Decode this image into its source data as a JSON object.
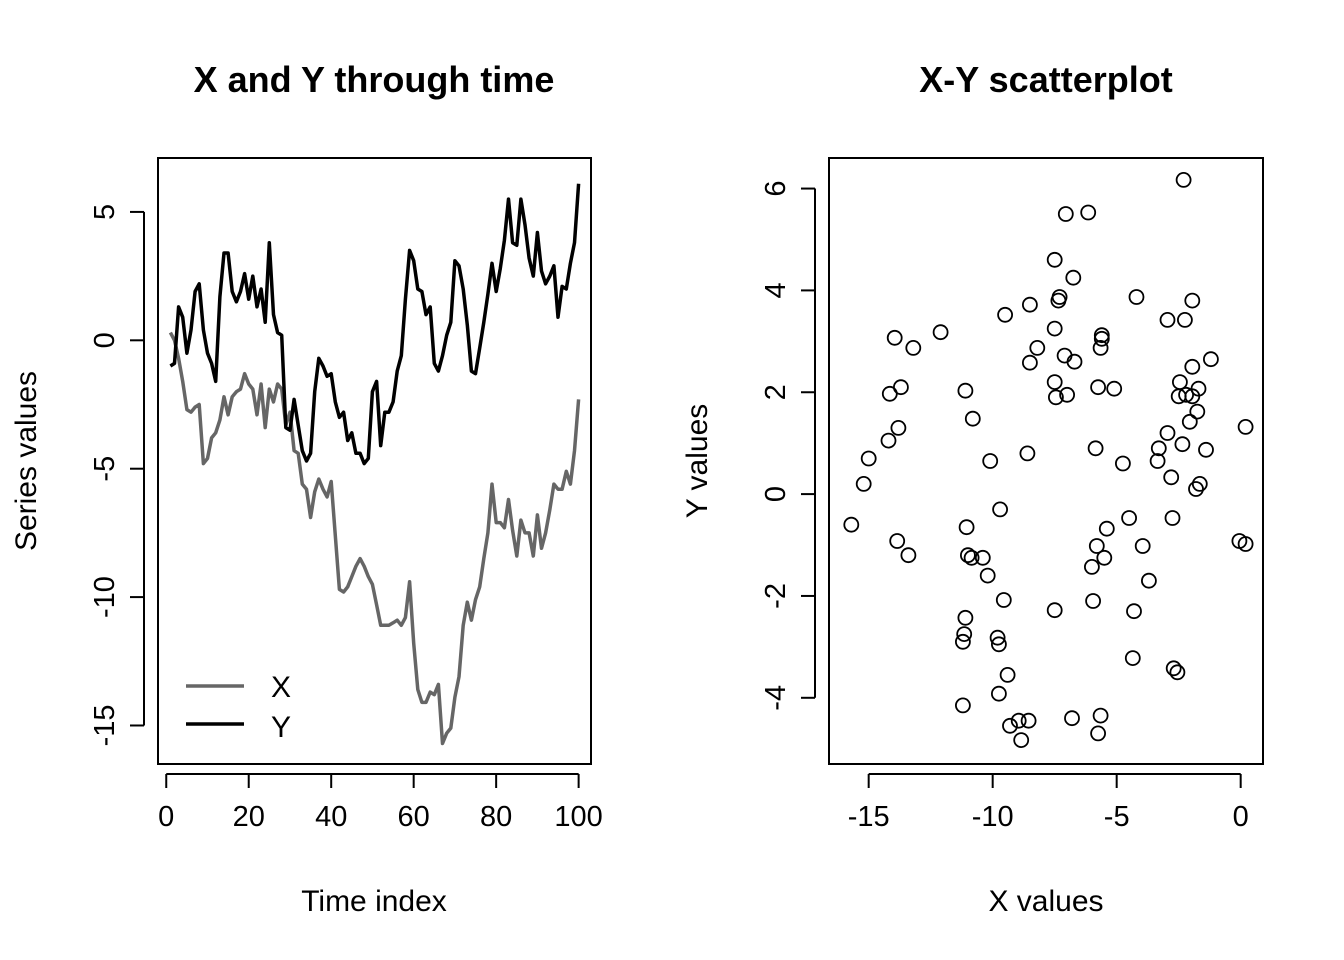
{
  "chart_data": [
    {
      "type": "line",
      "title": "X and Y through time",
      "xlabel": "Time index",
      "ylabel": "Series values",
      "xlim": [
        -2,
        103
      ],
      "ylim": [
        -16.5,
        7.1
      ],
      "xticks": [
        0,
        20,
        40,
        60,
        80,
        100
      ],
      "yticks": [
        5,
        0,
        -5,
        -10,
        -15
      ],
      "grid": false,
      "legend": "bottom-left",
      "x": [
        1,
        2,
        3,
        4,
        5,
        6,
        7,
        8,
        9,
        10,
        11,
        12,
        13,
        14,
        15,
        16,
        17,
        18,
        19,
        20,
        21,
        22,
        23,
        24,
        25,
        26,
        27,
        28,
        29,
        30,
        31,
        32,
        33,
        34,
        35,
        36,
        37,
        38,
        39,
        40,
        41,
        42,
        43,
        44,
        45,
        46,
        47,
        48,
        49,
        50,
        51,
        52,
        53,
        54,
        55,
        56,
        57,
        58,
        59,
        60,
        61,
        62,
        63,
        64,
        65,
        66,
        67,
        68,
        69,
        70,
        71,
        72,
        73,
        74,
        75,
        76,
        77,
        78,
        79,
        80,
        81,
        82,
        83,
        84,
        85,
        86,
        87,
        88,
        89,
        90,
        91,
        92,
        93,
        94,
        95,
        96,
        97,
        98,
        99,
        100
      ],
      "series": [
        {
          "name": "X",
          "color": "#666666",
          "values": [
            0.3,
            0.0,
            -0.7,
            -1.6,
            -2.7,
            -2.8,
            -2.6,
            -2.5,
            -4.8,
            -4.6,
            -3.8,
            -3.6,
            -3.1,
            -2.2,
            -2.9,
            -2.2,
            -2.0,
            -1.9,
            -1.3,
            -1.7,
            -1.9,
            -2.9,
            -1.7,
            -3.4,
            -1.9,
            -2.4,
            -1.7,
            -1.9,
            -3.3,
            -2.8,
            -4.3,
            -4.4,
            -5.6,
            -5.8,
            -6.9,
            -5.9,
            -5.4,
            -5.8,
            -6.1,
            -5.5,
            -7.6,
            -9.7,
            -9.8,
            -9.6,
            -9.2,
            -8.8,
            -8.5,
            -8.8,
            -9.2,
            -9.5,
            -10.3,
            -11.1,
            -11.1,
            -11.1,
            -11.0,
            -10.9,
            -11.1,
            -10.8,
            -9.4,
            -11.8,
            -13.6,
            -14.1,
            -14.1,
            -13.7,
            -13.8,
            -13.4,
            -15.7,
            -15.3,
            -15.1,
            -13.9,
            -13.1,
            -11.1,
            -10.2,
            -10.9,
            -10.1,
            -9.6,
            -8.5,
            -7.5,
            -5.6,
            -7.1,
            -7.1,
            -7.3,
            -6.2,
            -7.4,
            -8.4,
            -7.0,
            -7.5,
            -7.5,
            -8.4,
            -6.8,
            -8.1,
            -7.5,
            -6.6,
            -5.6,
            -5.8,
            -5.8,
            -5.1,
            -5.6,
            -4.3,
            -2.3
          ]
        },
        {
          "name": "Y",
          "color": "#000000",
          "values": [
            -1.0,
            -0.9,
            1.3,
            0.9,
            -0.5,
            0.4,
            1.9,
            2.2,
            0.4,
            -0.5,
            -0.9,
            -1.6,
            1.7,
            3.4,
            3.4,
            1.9,
            1.5,
            1.9,
            2.6,
            1.6,
            2.5,
            1.3,
            2.0,
            0.7,
            3.8,
            1.0,
            0.3,
            0.2,
            -3.4,
            -3.5,
            -2.3,
            -3.3,
            -4.3,
            -4.7,
            -4.4,
            -2.0,
            -0.7,
            -1.0,
            -1.4,
            -1.3,
            -2.4,
            -3.0,
            -2.8,
            -3.9,
            -3.6,
            -4.4,
            -4.4,
            -4.8,
            -4.6,
            -2.0,
            -1.6,
            -4.1,
            -2.8,
            -2.8,
            -2.4,
            -1.2,
            -0.6,
            1.6,
            3.5,
            3.1,
            2.0,
            1.9,
            1.0,
            1.3,
            -0.9,
            -1.2,
            -0.6,
            0.2,
            0.7,
            3.1,
            2.9,
            2.0,
            0.6,
            -1.2,
            -1.3,
            -0.3,
            0.7,
            1.8,
            3.0,
            1.9,
            2.8,
            3.9,
            5.5,
            3.8,
            3.7,
            5.5,
            4.5,
            3.2,
            2.5,
            4.2,
            2.7,
            2.2,
            2.5,
            2.9,
            0.9,
            2.1,
            2.0,
            3.0,
            3.8,
            6.1
          ]
        }
      ]
    },
    {
      "type": "scatter",
      "title": "X-Y scatterplot",
      "xlabel": "X values",
      "ylabel": "Y values",
      "xlim": [
        -16.6,
        0.9
      ],
      "ylim": [
        -5.3,
        6.6
      ],
      "xticks": [
        -15,
        -10,
        -5,
        0
      ],
      "yticks": [
        6,
        4,
        2,
        0,
        -2,
        -4
      ],
      "grid": false,
      "color": "#000000",
      "points": [
        [
          -15.7,
          -0.6
        ],
        [
          -15.2,
          0.2
        ],
        [
          -15.0,
          0.7
        ],
        [
          -14.2,
          1.05
        ],
        [
          -14.15,
          1.97
        ],
        [
          -13.95,
          3.07
        ],
        [
          -13.85,
          -0.92
        ],
        [
          -13.8,
          1.3
        ],
        [
          -13.7,
          2.1
        ],
        [
          -13.4,
          -1.2
        ],
        [
          -13.2,
          2.87
        ],
        [
          -12.1,
          3.18
        ],
        [
          -11.2,
          -2.9
        ],
        [
          -11.2,
          -4.15
        ],
        [
          -11.15,
          -2.75
        ],
        [
          -11.1,
          -2.43
        ],
        [
          -11.1,
          2.03
        ],
        [
          -11.05,
          -0.65
        ],
        [
          -11.0,
          -1.2
        ],
        [
          -10.85,
          -1.25
        ],
        [
          -10.8,
          1.48
        ],
        [
          -10.4,
          -1.25
        ],
        [
          -10.2,
          -1.6
        ],
        [
          -10.1,
          0.65
        ],
        [
          -9.8,
          -2.82
        ],
        [
          -9.75,
          -2.95
        ],
        [
          -9.75,
          -3.92
        ],
        [
          -9.7,
          -0.3
        ],
        [
          -9.55,
          -2.08
        ],
        [
          -9.5,
          3.52
        ],
        [
          -9.4,
          -3.55
        ],
        [
          -9.3,
          -4.55
        ],
        [
          -8.95,
          -4.45
        ],
        [
          -8.85,
          -4.83
        ],
        [
          -8.6,
          0.8
        ],
        [
          -8.55,
          -4.45
        ],
        [
          -8.5,
          2.58
        ],
        [
          -8.5,
          3.72
        ],
        [
          -8.2,
          2.87
        ],
        [
          -7.5,
          -2.28
        ],
        [
          -7.5,
          4.6
        ],
        [
          -7.5,
          3.25
        ],
        [
          -7.5,
          2.2
        ],
        [
          -7.45,
          1.9
        ],
        [
          -7.35,
          3.8
        ],
        [
          -7.3,
          3.87
        ],
        [
          -7.1,
          2.72
        ],
        [
          -7.05,
          5.5
        ],
        [
          -7.0,
          1.95
        ],
        [
          -6.8,
          -4.4
        ],
        [
          -6.75,
          4.25
        ],
        [
          -6.7,
          2.6
        ],
        [
          -6.15,
          5.53
        ],
        [
          -6.0,
          -1.43
        ],
        [
          -5.95,
          -2.1
        ],
        [
          -5.85,
          0.9
        ],
        [
          -5.8,
          -1.02
        ],
        [
          -5.75,
          2.1
        ],
        [
          -5.75,
          -4.7
        ],
        [
          -5.65,
          -4.35
        ],
        [
          -5.65,
          2.87
        ],
        [
          -5.6,
          3.05
        ],
        [
          -5.6,
          3.12
        ],
        [
          -5.5,
          -1.25
        ],
        [
          -5.4,
          -0.68
        ],
        [
          -5.1,
          2.07
        ],
        [
          -4.75,
          0.6
        ],
        [
          -4.5,
          -0.47
        ],
        [
          -4.35,
          -3.22
        ],
        [
          -4.3,
          -2.3
        ],
        [
          -4.2,
          3.87
        ],
        [
          -3.95,
          -1.02
        ],
        [
          -3.7,
          -1.7
        ],
        [
          -3.35,
          0.65
        ],
        [
          -3.3,
          0.9
        ],
        [
          -2.95,
          1.2
        ],
        [
          -2.95,
          3.42
        ],
        [
          -2.8,
          0.33
        ],
        [
          -2.75,
          -0.47
        ],
        [
          -2.7,
          -3.42
        ],
        [
          -2.55,
          -3.5
        ],
        [
          -2.5,
          1.92
        ],
        [
          -2.45,
          2.2
        ],
        [
          -2.35,
          0.98
        ],
        [
          -2.3,
          6.17
        ],
        [
          -2.25,
          3.42
        ],
        [
          -2.2,
          1.95
        ],
        [
          -2.05,
          1.42
        ],
        [
          -1.95,
          2.5
        ],
        [
          -1.95,
          3.8
        ],
        [
          -1.95,
          1.92
        ],
        [
          -1.8,
          0.1
        ],
        [
          -1.75,
          1.62
        ],
        [
          -1.7,
          2.07
        ],
        [
          -1.65,
          0.2
        ],
        [
          -1.4,
          0.87
        ],
        [
          -1.2,
          2.65
        ],
        [
          -0.05,
          -0.92
        ],
        [
          0.2,
          -0.98
        ],
        [
          0.2,
          1.32
        ]
      ]
    }
  ]
}
